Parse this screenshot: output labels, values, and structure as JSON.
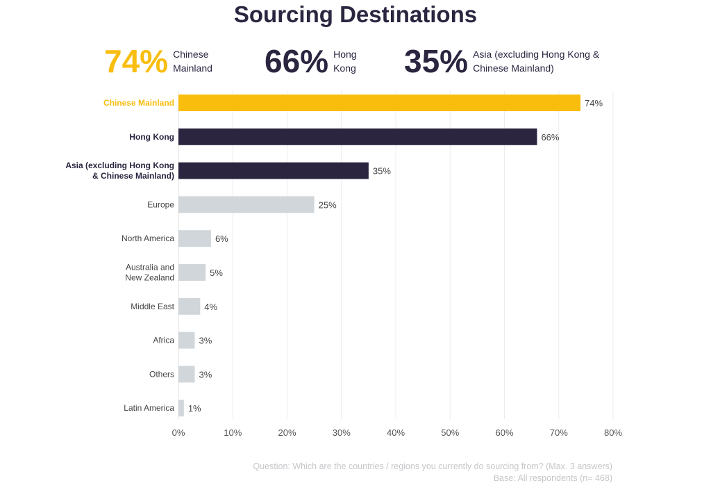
{
  "title": "Sourcing Destinations",
  "highlights": [
    {
      "value": "74%",
      "label_line1": "Chinese",
      "label_line2": "Mainland",
      "color": "#f9bd0e"
    },
    {
      "value": "66%",
      "label_line1": "Hong",
      "label_line2": "Kong",
      "color": "#2b2540"
    },
    {
      "value": "35%",
      "label_line1": "Asia (excluding Hong Kong &",
      "label_line2": "Chinese Mainland)",
      "color": "#2b2540"
    }
  ],
  "chart_data": {
    "type": "bar",
    "orientation": "horizontal",
    "categories": [
      [
        "Chinese Mainland"
      ],
      [
        "Hong Kong"
      ],
      [
        "Asia (excluding Hong Kong",
        "& Chinese Mainland)"
      ],
      [
        "Europe"
      ],
      [
        "North America"
      ],
      [
        "Australia and",
        "New Zealand"
      ],
      [
        "Middle East"
      ],
      [
        "Africa"
      ],
      [
        "Others"
      ],
      [
        "Latin America"
      ]
    ],
    "values": [
      74,
      66,
      35,
      25,
      6,
      5,
      4,
      3,
      3,
      1
    ],
    "value_labels": [
      "74%",
      "66%",
      "35%",
      "25%",
      "6%",
      "5%",
      "4%",
      "3%",
      "3%",
      "1%"
    ],
    "bar_colors": [
      "#f9bd0e",
      "#2b2540",
      "#2b2540",
      "#d1d6da",
      "#d1d6da",
      "#d1d6da",
      "#d1d6da",
      "#d1d6da",
      "#d1d6da",
      "#d1d6da"
    ],
    "label_colors": [
      "#f9bd0e",
      "#2b2540",
      "#2b2540",
      "#444444",
      "#444444",
      "#444444",
      "#444444",
      "#444444",
      "#444444",
      "#444444"
    ],
    "label_bold": [
      true,
      true,
      true,
      false,
      false,
      false,
      false,
      false,
      false,
      false
    ],
    "xlim": [
      0,
      80
    ],
    "xticks": [
      0,
      10,
      20,
      30,
      40,
      50,
      60,
      70,
      80
    ],
    "xtick_labels": [
      "0%",
      "10%",
      "20%",
      "30%",
      "40%",
      "50%",
      "60%",
      "70%",
      "80%"
    ],
    "grid": true
  },
  "footnote": {
    "line1": "Question: Which are the countries / regions you currently do sourcing from? (Max. 3 answers)",
    "line2": "Base: All respondents (n= 468)"
  }
}
